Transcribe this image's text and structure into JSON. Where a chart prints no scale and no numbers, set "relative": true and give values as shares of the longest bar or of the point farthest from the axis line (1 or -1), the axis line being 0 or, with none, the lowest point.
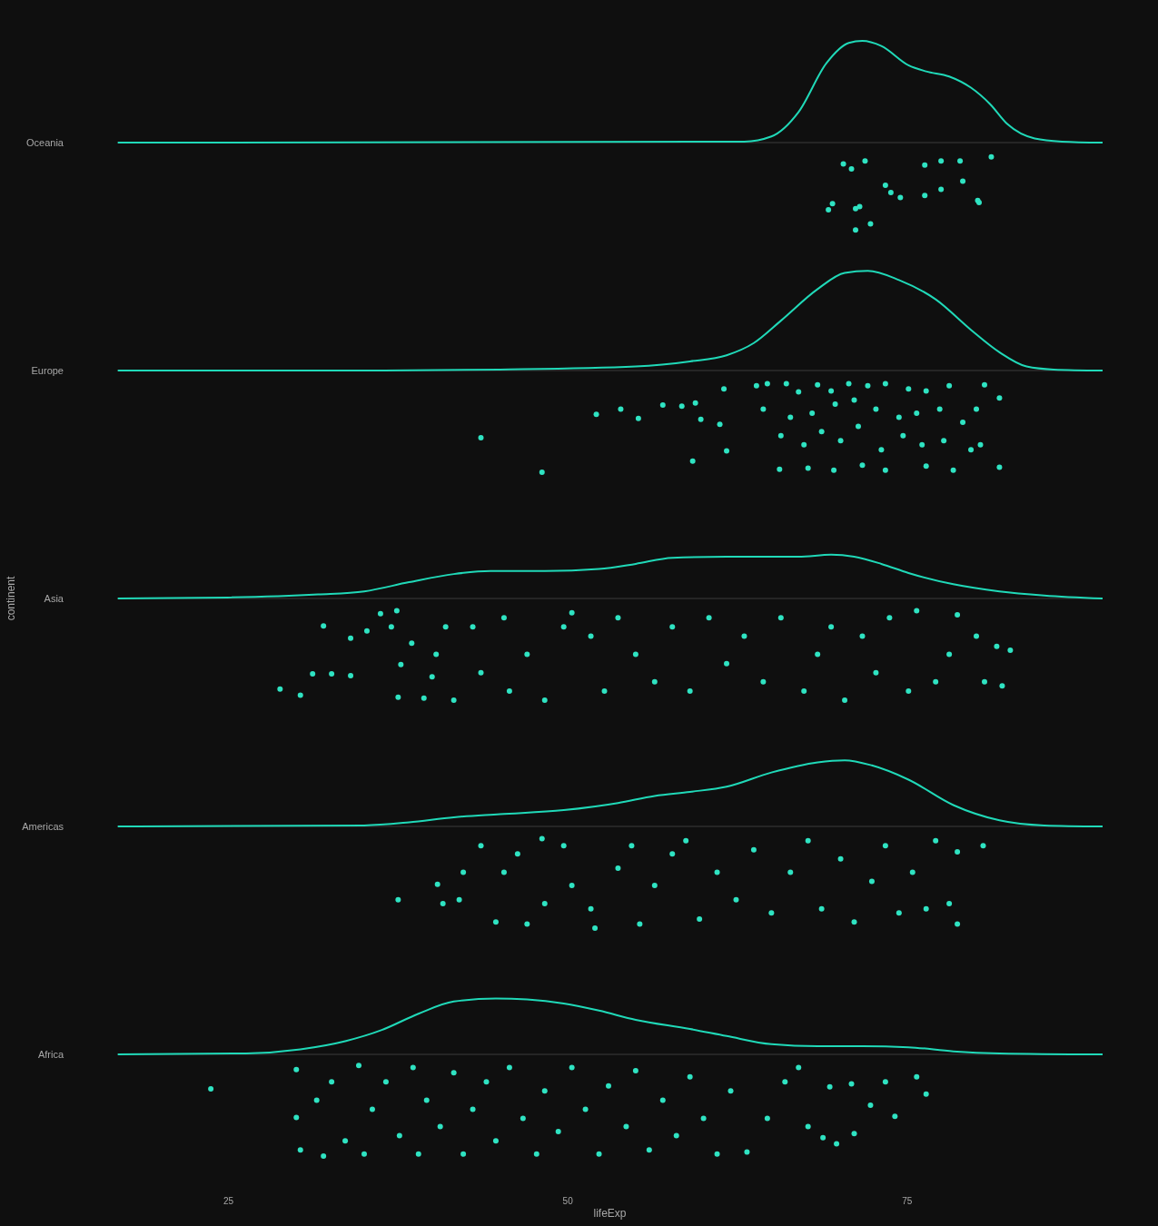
{
  "chart_data": [
    {
      "type": "scatter",
      "relative": true,
      "ylabel": "Oceania",
      "xlim": [
        16.8,
        89.4
      ],
      "xticks": [
        25,
        50,
        75
      ],
      "tick_labels": false,
      "series": [
        {
          "type": "line",
          "color": "#20d9b8",
          "x": [
            16.85,
            63.0,
            65.0,
            67.0,
            69.05,
            70.7,
            71.7,
            73.1,
            75.1,
            76.4,
            78.1,
            79.7,
            81.1,
            82.4,
            84.4,
            86.4,
            89.4
          ],
          "values": [
            0,
            0.01,
            0.06,
            0.3,
            0.78,
            0.98,
            1,
            0.95,
            0.76,
            0.7,
            0.65,
            0.54,
            0.38,
            0.18,
            0.04,
            0.01,
            0
          ]
        },
        {
          "type": "scatter",
          "marker": "circle",
          "color": "#2fe3c2",
          "x": [
            70.3,
            70.9,
            71.9,
            76.3,
            77.5,
            78.9,
            81.2,
            73.4,
            73.8,
            74.5,
            76.3,
            77.5,
            79.1,
            80.2,
            80.3,
            69.5,
            69.2,
            71.2,
            71.5,
            72.3,
            71.2
          ],
          "values": [
            -0.21,
            -0.26,
            -0.18,
            -0.22,
            -0.18,
            -0.18,
            -0.14,
            -0.42,
            -0.49,
            -0.54,
            -0.52,
            -0.46,
            -0.38,
            -0.57,
            -0.59,
            -0.6,
            -0.66,
            -0.65,
            -0.63,
            -0.8,
            -0.86
          ]
        }
      ]
    },
    {
      "type": "scatter",
      "relative": true,
      "ylabel": "Europe",
      "xlim": [
        16.8,
        89.4
      ],
      "xticks": [
        25,
        50,
        75
      ],
      "tick_labels": false,
      "series": [
        {
          "type": "line",
          "color": "#20d9b8",
          "x": [
            16.85,
            35.0,
            45.0,
            55.0,
            59.0,
            61.7,
            63.7,
            65.7,
            68.4,
            70.4,
            72.1,
            74.4,
            77.1,
            79.7,
            81.8,
            83.8,
            85.8,
            89.4
          ],
          "values": [
            0,
            0,
            0.01,
            0.04,
            0.09,
            0.15,
            0.27,
            0.49,
            0.8,
            0.96,
            0.98,
            0.89,
            0.7,
            0.4,
            0.18,
            0.04,
            0.01,
            0
          ]
        },
        {
          "type": "scatter",
          "marker": "circle",
          "color": "#2fe3c2",
          "x": [
            43.6,
            48.1,
            52.1,
            53.9,
            55.2,
            57.0,
            58.4,
            59.4,
            59.8,
            59.2,
            61.2,
            61.5,
            61.7,
            63.9,
            64.7,
            66.1,
            67.0,
            68.4,
            69.4,
            70.7,
            72.1,
            73.4,
            75.1,
            76.4,
            78.1,
            80.7,
            81.8,
            64.4,
            66.4,
            68.0,
            69.7,
            71.1,
            72.7,
            74.4,
            75.7,
            77.4,
            79.1,
            80.1,
            65.7,
            67.4,
            68.7,
            70.1,
            71.4,
            73.1,
            74.7,
            76.1,
            77.7,
            79.7,
            65.6,
            67.7,
            69.6,
            71.7,
            73.4,
            76.4,
            78.4,
            80.4,
            81.8
          ],
          "values": [
            -0.66,
            -1,
            -0.43,
            -0.38,
            -0.47,
            -0.34,
            -0.35,
            -0.32,
            -0.48,
            -0.89,
            -0.53,
            -0.18,
            -0.79,
            -0.15,
            -0.13,
            -0.13,
            -0.21,
            -0.14,
            -0.2,
            -0.13,
            -0.15,
            -0.13,
            -0.18,
            -0.2,
            -0.15,
            -0.14,
            -0.27,
            -0.38,
            -0.46,
            -0.42,
            -0.33,
            -0.29,
            -0.38,
            -0.46,
            -0.42,
            -0.38,
            -0.51,
            -0.38,
            -0.64,
            -0.73,
            -0.6,
            -0.69,
            -0.55,
            -0.78,
            -0.64,
            -0.73,
            -0.69,
            -0.78,
            -0.97,
            -0.96,
            -0.98,
            -0.93,
            -0.98,
            -0.94,
            -0.98,
            -0.73,
            -0.95
          ]
        }
      ]
    },
    {
      "type": "scatter",
      "relative": true,
      "ylabel": "Asia",
      "annotations": [
        "continent"
      ],
      "xlim": [
        16.8,
        89.4
      ],
      "xticks": [
        25,
        50,
        75
      ],
      "tick_labels": false,
      "series": [
        {
          "type": "line",
          "color": "#20d9b8",
          "x": [
            16.85,
            24.9,
            31.6,
            35.0,
            38.3,
            41.6,
            44.3,
            48.3,
            52.3,
            55.0,
            57.7,
            61.7,
            65.0,
            67.0,
            69.4,
            71.1,
            73.1,
            75.1,
            78.4,
            81.8,
            85.1,
            89.4
          ],
          "values": [
            0,
            0.01,
            0.04,
            0.07,
            0.16,
            0.24,
            0.27,
            0.27,
            0.29,
            0.34,
            0.4,
            0.41,
            0.41,
            0.41,
            0.43,
            0.41,
            0.34,
            0.25,
            0.14,
            0.07,
            0.03,
            0
          ]
        },
        {
          "type": "scatter",
          "marker": "circle",
          "color": "#2fe3c2",
          "x": [
            28.8,
            30.3,
            31.2,
            32.6,
            34.0,
            32.0,
            34.0,
            35.2,
            36.2,
            37.0,
            37.4,
            37.5,
            37.7,
            38.5,
            39.4,
            40.0,
            40.3,
            41.0,
            41.6,
            43.0,
            43.6,
            45.3,
            45.7,
            47.0,
            48.3,
            49.7,
            50.3,
            51.7,
            52.7,
            53.7,
            55.0,
            56.4,
            57.7,
            59.0,
            60.4,
            61.7,
            63.0,
            64.4,
            65.7,
            67.4,
            68.4,
            69.4,
            70.4,
            71.7,
            72.7,
            73.7,
            75.1,
            75.7,
            77.1,
            78.1,
            78.7,
            80.1,
            80.7,
            81.6,
            82.0,
            82.6
          ],
          "values": [
            -0.89,
            -0.95,
            -0.74,
            -0.74,
            -0.76,
            -0.27,
            -0.39,
            -0.32,
            -0.15,
            -0.28,
            -0.12,
            -0.97,
            -0.65,
            -0.44,
            -0.98,
            -0.77,
            -0.55,
            -0.28,
            -1,
            -0.28,
            -0.73,
            -0.19,
            -0.91,
            -0.55,
            -1,
            -0.28,
            -0.14,
            -0.37,
            -0.91,
            -0.19,
            -0.55,
            -0.82,
            -0.28,
            -0.91,
            -0.19,
            -0.64,
            -0.37,
            -0.82,
            -0.19,
            -0.91,
            -0.55,
            -0.28,
            -1,
            -0.37,
            -0.73,
            -0.19,
            -0.91,
            -0.12,
            -0.82,
            -0.55,
            -0.16,
            -0.37,
            -0.82,
            -0.47,
            -0.86,
            -0.51
          ]
        }
      ]
    },
    {
      "type": "scatter",
      "relative": true,
      "ylabel": "Americas",
      "xlim": [
        16.8,
        89.4
      ],
      "xticks": [
        25,
        50,
        75
      ],
      "tick_labels": false,
      "series": [
        {
          "type": "line",
          "color": "#20d9b8",
          "x": [
            16.85,
            35.0,
            38.3,
            41.6,
            45.0,
            49.7,
            53.7,
            56.4,
            59.0,
            61.7,
            65.0,
            68.4,
            70.4,
            72.4,
            75.1,
            78.4,
            81.8,
            85.1,
            89.4
          ],
          "values": [
            0,
            0.01,
            0.04,
            0.09,
            0.12,
            0.16,
            0.23,
            0.3,
            0.34,
            0.39,
            0.53,
            0.63,
            0.65,
            0.6,
            0.46,
            0.21,
            0.06,
            0.01,
            0
          ]
        },
        {
          "type": "scatter",
          "marker": "circle",
          "color": "#2fe3c2",
          "x": [
            37.5,
            40.4,
            40.8,
            42.0,
            42.3,
            43.6,
            44.7,
            45.3,
            46.3,
            47.0,
            48.1,
            48.3,
            49.7,
            50.3,
            51.7,
            52.0,
            53.7,
            54.7,
            55.3,
            56.4,
            57.7,
            58.7,
            59.7,
            61.0,
            62.4,
            63.7,
            65.0,
            66.4,
            67.7,
            68.7,
            70.1,
            71.1,
            72.4,
            73.4,
            74.4,
            75.4,
            76.4,
            77.1,
            78.1,
            78.7,
            80.6,
            78.7
          ],
          "values": [
            -0.72,
            -0.57,
            -0.76,
            -0.72,
            -0.45,
            -0.19,
            -0.94,
            -0.45,
            -0.27,
            -0.96,
            -0.12,
            -0.76,
            -0.19,
            -0.58,
            -0.81,
            -1,
            -0.41,
            -0.19,
            -0.96,
            -0.58,
            -0.27,
            -0.14,
            -0.91,
            -0.45,
            -0.72,
            -0.23,
            -0.85,
            -0.45,
            -0.14,
            -0.81,
            -0.32,
            -0.94,
            -0.54,
            -0.19,
            -0.85,
            -0.45,
            -0.81,
            -0.14,
            -0.76,
            -0.25,
            -0.19,
            -0.96
          ]
        }
      ]
    },
    {
      "type": "scatter",
      "relative": true,
      "ylabel": "Africa",
      "xlabel": "lifeExp",
      "xlim": [
        16.8,
        89.4
      ],
      "xticks": [
        25,
        50,
        75
      ],
      "tick_labels": "x",
      "series": [
        {
          "type": "line",
          "color": "#20d9b8",
          "x": [
            16.85,
            26.3,
            30.3,
            33.6,
            36.3,
            39.0,
            41.6,
            44.7,
            47.0,
            49.7,
            52.3,
            55.0,
            59.0,
            61.7,
            65.0,
            68.4,
            71.7,
            75.1,
            78.4,
            81.8,
            89.4
          ],
          "values": [
            0,
            0.01,
            0.05,
            0.13,
            0.24,
            0.4,
            0.52,
            0.55,
            0.54,
            0.5,
            0.43,
            0.34,
            0.25,
            0.18,
            0.1,
            0.08,
            0.08,
            0.07,
            0.03,
            0.01,
            0
          ]
        },
        {
          "type": "scatter",
          "marker": "circle",
          "color": "#2fe3c2",
          "x": [
            23.7,
            30.0,
            30.0,
            30.3,
            32.0,
            31.5,
            32.6,
            33.6,
            34.6,
            35.0,
            35.6,
            36.6,
            37.6,
            38.6,
            39.0,
            39.6,
            40.6,
            41.6,
            42.3,
            43.0,
            44.0,
            44.7,
            45.7,
            46.7,
            47.7,
            48.3,
            49.3,
            50.3,
            51.3,
            52.3,
            53.0,
            54.3,
            55.0,
            56.0,
            57.0,
            58.0,
            59.0,
            60.0,
            61.0,
            62.0,
            63.2,
            64.7,
            66.0,
            67.0,
            67.7,
            68.8,
            69.3,
            69.8,
            70.9,
            71.1,
            72.3,
            73.4,
            74.1,
            75.7,
            76.4
          ],
          "values": [
            -0.34,
            -0.15,
            -0.62,
            -0.94,
            -1,
            -0.45,
            -0.27,
            -0.85,
            -0.11,
            -0.98,
            -0.54,
            -0.27,
            -0.8,
            -0.13,
            -0.98,
            -0.45,
            -0.71,
            -0.18,
            -0.98,
            -0.54,
            -0.27,
            -0.85,
            -0.13,
            -0.63,
            -0.98,
            -0.36,
            -0.76,
            -0.13,
            -0.54,
            -0.98,
            -0.31,
            -0.71,
            -0.16,
            -0.94,
            -0.45,
            -0.8,
            -0.22,
            -0.63,
            -0.98,
            -0.36,
            -0.96,
            -0.63,
            -0.27,
            -0.13,
            -0.71,
            -0.82,
            -0.32,
            -0.88,
            -0.29,
            -0.78,
            -0.5,
            -0.27,
            -0.61,
            -0.22,
            -0.39
          ]
        }
      ]
    }
  ]
}
